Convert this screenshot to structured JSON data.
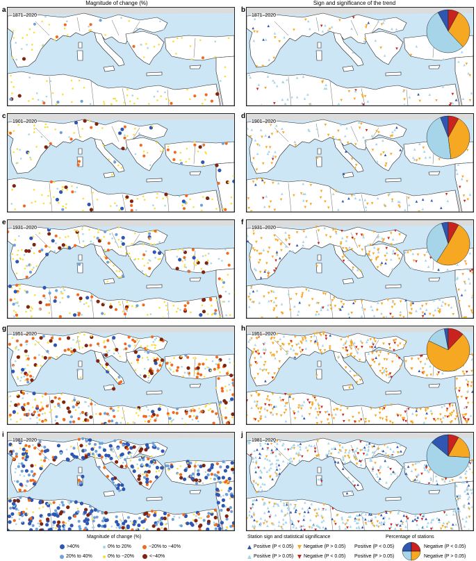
{
  "titles": {
    "left": "Magnitude of change (%)",
    "right": "Sign and significance of the trend"
  },
  "panels": [
    {
      "left": "a",
      "right": "b",
      "period": "1871–2020",
      "pie": [
        0.08,
        0.08,
        0.54,
        0.3
      ]
    },
    {
      "left": "c",
      "right": "d",
      "period": "1901–2020",
      "pie": [
        0.06,
        0.08,
        0.46,
        0.4
      ]
    },
    {
      "left": "e",
      "right": "f",
      "period": "1931–2020",
      "pie": [
        0.05,
        0.08,
        0.36,
        0.51
      ]
    },
    {
      "left": "g",
      "right": "h",
      "period": "1951–2020",
      "pie": [
        0.03,
        0.12,
        0.15,
        0.7
      ]
    },
    {
      "left": "i",
      "right": "j",
      "period": "1981–2020",
      "pie": [
        0.14,
        0.08,
        0.6,
        0.18
      ]
    }
  ],
  "colors": {
    "sea": "#cde6f5",
    "land": "#ffffff",
    "outside": "#dcdcdc",
    "pos_sig": "#2f56b0",
    "pos_ns": "#a6d5ea",
    "neg_sig": "#c8231f",
    "neg_ns": "#f7a823"
  },
  "legend_magnitude": {
    "title": "Magnitude of change (%)",
    "items": [
      {
        "label": ">40%",
        "color": "#2f56b0",
        "size": 7
      },
      {
        "label": "0% to 20%",
        "color": "#a6d5ea",
        "size": 4
      },
      {
        "label": "−20% to −40%",
        "color": "#ef6a1f",
        "size": 6
      },
      {
        "label": "20% to 40%",
        "color": "#6fa0d8",
        "size": 6
      },
      {
        "label": "0% to −20%",
        "color": "#f7df40",
        "size": 4
      },
      {
        "label": "<−40%",
        "color": "#7e2410",
        "size": 7
      }
    ]
  },
  "legend_sign": {
    "title": "Station sign and statistical significance",
    "items": [
      {
        "label": "Positive (P < 0.05)",
        "color": "#2f56b0",
        "dir": "up"
      },
      {
        "label": "Negative (P > 0.05)",
        "color": "#f7a823",
        "dir": "down"
      },
      {
        "label": "Positive (P > 0.05)",
        "color": "#a6d5ea",
        "dir": "up"
      },
      {
        "label": "Negative (P < 0.05)",
        "color": "#c8231f",
        "dir": "down"
      }
    ]
  },
  "legend_pie": {
    "title": "Percentage of stations",
    "items": [
      {
        "label": "Positive (P < 0.05)"
      },
      {
        "label": "Positive (P > 0.05)"
      },
      {
        "label": "Negative (P < 0.05)"
      },
      {
        "label": "Negative (P > 0.05)"
      }
    ]
  }
}
